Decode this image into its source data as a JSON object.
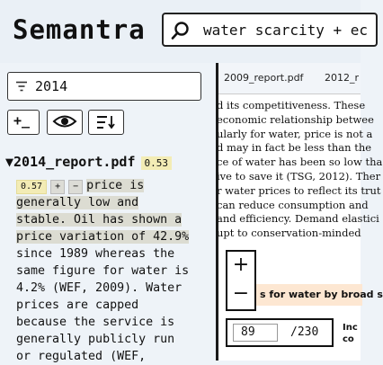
{
  "app": {
    "title": "Semantra"
  },
  "search": {
    "query": "water scarcity + ec"
  },
  "filter": {
    "value": "2014"
  },
  "toolbar": {
    "add_label": "+_"
  },
  "result": {
    "doc_title": "2014_report.pdf",
    "doc_score": "0.53",
    "snippet_score": "0.57",
    "plus_label": "+",
    "minus_label": "−",
    "snippet_lines": [
      "price is",
      "generally low and",
      "stable. Oil has shown a",
      "price variation of 42.9%",
      "since 1989 whereas the",
      "same figure for water is",
      "4.2% (WEF, 2009). Water",
      "prices are capped",
      "because the service is",
      "generally publicly run",
      "or regulated (WEF,"
    ]
  },
  "viewer": {
    "tabs": [
      "2009_report.pdf",
      "2012_r"
    ],
    "lines": [
      "d its competitiveness. These",
      "economic relationship betwee",
      "ularly for water, price is not a",
      "d may in fact be less than the",
      "ce of water has been so low tha",
      "ive to save it (TSG, 2012). Ther",
      "r water prices to reflect its trut",
      "can reduce consumption and",
      "and efficiency. Demand elastici",
      "upt to conservation-minded"
    ],
    "zoom_in": "+",
    "zoom_out": "−",
    "table_heading": "s for water by broad s",
    "page_current": "89",
    "page_total": "/230",
    "side_label_1": "Inc",
    "side_label_2": "co"
  }
}
